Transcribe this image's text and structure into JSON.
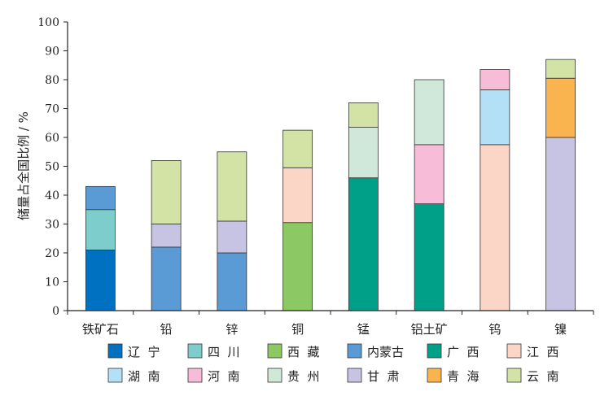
{
  "chart_data": {
    "type": "bar",
    "stacked": true,
    "title": "",
    "xlabel": "",
    "ylabel": "储量占全国比例 / %",
    "ylim": [
      0,
      100
    ],
    "yticks": [
      0,
      10,
      20,
      30,
      40,
      50,
      60,
      70,
      80,
      90,
      100
    ],
    "grid": false,
    "legend_position": "bottom",
    "categories": [
      "铁矿石",
      "铅",
      "锌",
      "铜",
      "锰",
      "铝土矿",
      "钨",
      "镍"
    ],
    "series": [
      {
        "name": "辽  宁",
        "color": "#0070c0",
        "values": [
          21,
          0,
          0,
          0,
          0,
          0,
          0,
          0
        ]
      },
      {
        "name": "四  川",
        "color": "#7ecdcd",
        "values": [
          14,
          0,
          0,
          0,
          0,
          0,
          0,
          0
        ]
      },
      {
        "name": "西  藏",
        "color": "#8cc964",
        "values": [
          0,
          0,
          0,
          30.5,
          0,
          0,
          0,
          0
        ]
      },
      {
        "name": "内蒙古",
        "color": "#5b9bd5",
        "values": [
          8,
          22,
          20,
          0,
          0,
          0,
          0,
          0
        ]
      },
      {
        "name": "广  西",
        "color": "#00a088",
        "values": [
          0,
          0,
          0,
          0,
          46,
          37,
          0,
          0
        ]
      },
      {
        "name": "江  西",
        "color": "#fbd5c5",
        "values": [
          0,
          0,
          0,
          19,
          0,
          0,
          57.5,
          0
        ]
      },
      {
        "name": "湖  南",
        "color": "#b3e0f7",
        "values": [
          0,
          0,
          0,
          0,
          0,
          0,
          19,
          0
        ]
      },
      {
        "name": "河  南",
        "color": "#f6bcd8",
        "values": [
          0,
          0,
          0,
          0,
          0,
          20.5,
          7,
          0
        ]
      },
      {
        "name": "贵  州",
        "color": "#cfe8d9",
        "values": [
          0,
          0,
          0,
          0,
          17.5,
          22.5,
          0,
          0
        ]
      },
      {
        "name": "甘  肃",
        "color": "#c7c3e3",
        "values": [
          0,
          8,
          11,
          0,
          0,
          0,
          0,
          60
        ]
      },
      {
        "name": "青  海",
        "color": "#f9b450",
        "values": [
          0,
          0,
          0,
          0,
          0,
          0,
          0,
          20.5
        ]
      },
      {
        "name": "云  南",
        "color": "#d3e3a6",
        "values": [
          0,
          22,
          24,
          13,
          8.5,
          0,
          0,
          6.5
        ]
      }
    ]
  }
}
